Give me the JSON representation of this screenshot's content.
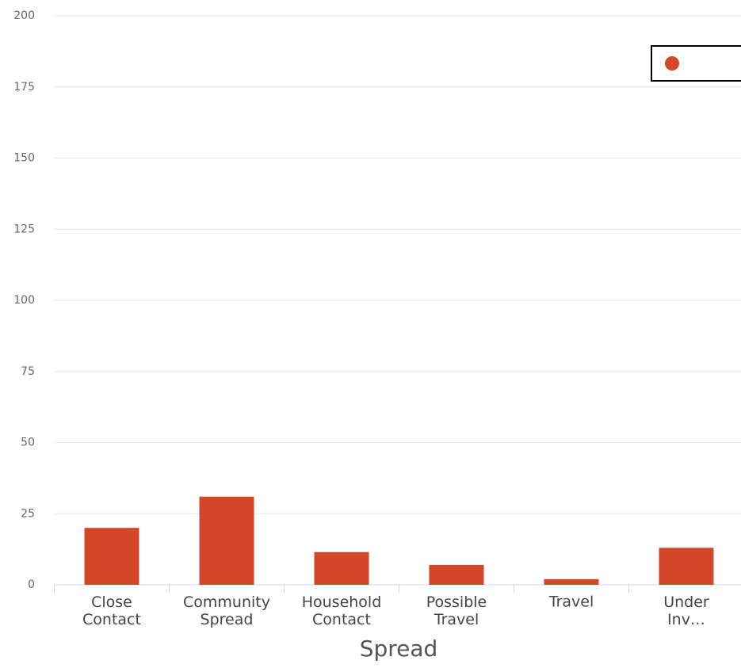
{
  "chart_data": {
    "type": "bar",
    "x_label": "Spread",
    "categories": [
      "Close Contact",
      "Community Spread",
      "Household Contact",
      "Possible Travel",
      "Travel",
      "Under Inv…"
    ],
    "values": [
      20,
      31,
      11.5,
      7,
      2,
      13
    ],
    "color": "#d34627",
    "ylim": [
      0,
      200
    ],
    "yticks": [
      0,
      25,
      50,
      75,
      100,
      125,
      150,
      175,
      200
    ],
    "grid": true,
    "legend": "upper right"
  }
}
